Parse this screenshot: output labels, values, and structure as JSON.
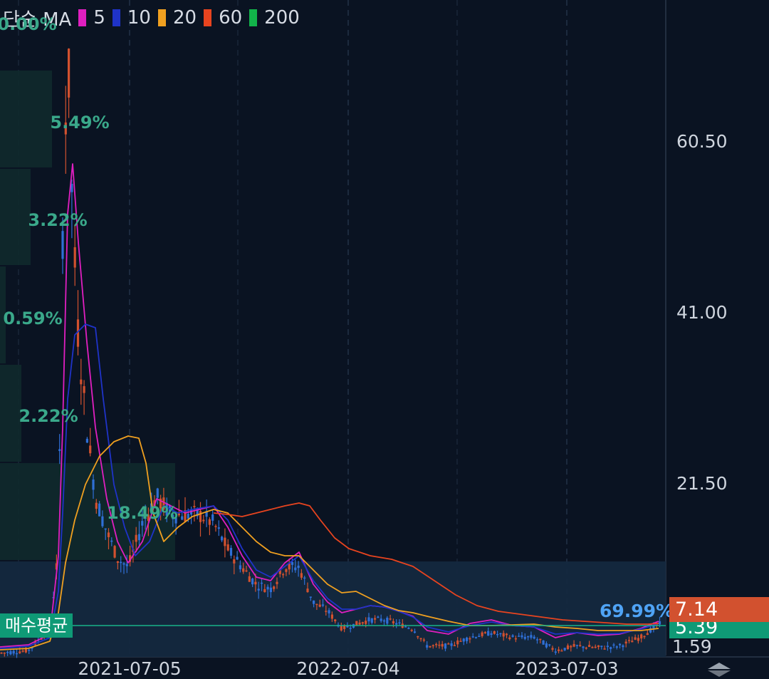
{
  "legend": {
    "prefix": "단순 MA",
    "items": [
      {
        "label": "5",
        "color": "#e01fc0"
      },
      {
        "label": "10",
        "color": "#1f33c8"
      },
      {
        "label": "20",
        "color": "#f0a020"
      },
      {
        "label": "60",
        "color": "#e8441f"
      },
      {
        "label": "200",
        "color": "#12b34a"
      }
    ]
  },
  "y_axis": {
    "ticks": [
      "60.50",
      "41.00",
      "21.50"
    ]
  },
  "x_axis": {
    "ticks": [
      "2021-07-05",
      "2022-07-04",
      "2023-07-03"
    ]
  },
  "volume_profile": {
    "labels": [
      "0.00%",
      "5.49%",
      "3.22%",
      "0.59%",
      "2.22%",
      "18.49%",
      "69.99%"
    ]
  },
  "price_tags": {
    "current": "7.14",
    "average": "5.39",
    "low": "1.59",
    "current_color": "#d2512f",
    "average_color": "#0f9a76"
  },
  "avg_label": "매수평균",
  "chart_data": {
    "type": "candlestick",
    "title": "",
    "xlabel": "",
    "ylabel": "",
    "x_ticks": [
      "2021-07-05",
      "2022-07-04",
      "2023-07-03"
    ],
    "y_ticks": [
      21.5,
      41.0,
      60.5
    ],
    "ylim": [
      1.0,
      75.0
    ],
    "average_price": 5.39,
    "last_price": 7.14,
    "min_price": 1.59,
    "volume_profile_percent": [
      0.0,
      5.49,
      3.22,
      0.59,
      2.22,
      18.49,
      69.99
    ],
    "series": [
      {
        "name": "5",
        "color": "#e01fc0",
        "x": [
          "2021-01",
          "2021-02",
          "2021-03",
          "2021-04",
          "2021-05",
          "2021-06",
          "2021-07",
          "2021-08",
          "2021-09",
          "2021-10",
          "2021-11",
          "2021-12",
          "2022-01",
          "2022-02",
          "2022-03",
          "2022-04",
          "2022-05",
          "2022-06",
          "2022-07",
          "2022-08",
          "2022-09",
          "2022-10",
          "2022-11",
          "2022-12",
          "2023-01",
          "2023-02",
          "2023-03",
          "2023-04",
          "2023-05",
          "2023-06",
          "2023-07",
          "2023-08",
          "2023-09"
        ],
        "values": [
          2,
          2.5,
          6,
          18,
          52,
          30,
          14,
          11,
          18,
          15,
          17,
          16,
          12,
          10,
          7,
          9,
          11,
          8,
          5,
          6,
          6,
          5,
          4,
          3,
          4,
          3,
          3.5,
          3,
          2.5,
          2.5,
          3,
          3.5,
          5
        ]
      },
      {
        "name": "10",
        "color": "#1f33c8",
        "x": [
          "2021-01",
          "2021-02",
          "2021-03",
          "2021-04",
          "2021-05",
          "2021-06",
          "2021-07",
          "2021-08",
          "2021-09",
          "2021-10",
          "2021-11",
          "2021-12",
          "2022-01",
          "2022-02",
          "2022-03",
          "2022-04",
          "2022-05",
          "2022-06",
          "2022-07",
          "2022-08",
          "2022-09",
          "2022-10",
          "2022-11",
          "2022-12",
          "2023-01",
          "2023-02",
          "2023-03",
          "2023-04",
          "2023-05",
          "2023-06",
          "2023-07",
          "2023-08",
          "2023-09"
        ],
        "values": [
          2,
          2.2,
          4,
          12,
          40,
          38,
          18,
          12,
          17,
          16,
          17,
          17,
          13,
          11,
          8,
          9,
          11,
          9,
          6,
          6,
          6,
          5,
          4,
          3.5,
          4,
          3.2,
          3.5,
          3,
          2.6,
          2.6,
          3,
          3.4,
          4.5
        ]
      },
      {
        "name": "20",
        "color": "#f0a020",
        "x": [
          "2021-01",
          "2021-02",
          "2021-03",
          "2021-04",
          "2021-05",
          "2021-06",
          "2021-07",
          "2021-08",
          "2021-09",
          "2021-10",
          "2021-11",
          "2021-12",
          "2022-01",
          "2022-02",
          "2022-03",
          "2022-04",
          "2022-05",
          "2022-06",
          "2022-07",
          "2022-08",
          "2022-09",
          "2022-10",
          "2022-11",
          "2022-12",
          "2023-01",
          "2023-02",
          "2023-03",
          "2023-04",
          "2023-05",
          "2023-06",
          "2023-07",
          "2023-08",
          "2023-09"
        ],
        "values": [
          2,
          2,
          3,
          8,
          20,
          26,
          25,
          17,
          15,
          16,
          17,
          17,
          15,
          13,
          10,
          9,
          10,
          10,
          7,
          7,
          6,
          5.5,
          4.5,
          4,
          4,
          3.5,
          3.5,
          3.3,
          3,
          2.8,
          3,
          3.3,
          4
        ]
      },
      {
        "name": "60",
        "color": "#e8441f",
        "x": [
          "2022-01",
          "2022-02",
          "2022-03",
          "2022-04",
          "2022-05",
          "2022-06",
          "2022-07",
          "2022-08",
          "2022-09",
          "2022-10",
          "2022-11",
          "2022-12",
          "2023-01",
          "2023-02",
          "2023-03",
          "2023-04",
          "2023-05",
          "2023-06",
          "2023-07",
          "2023-08",
          "2023-09"
        ],
        "values": [
          17,
          17.5,
          18,
          19,
          19,
          15,
          11,
          9,
          8.5,
          8,
          7,
          6,
          5,
          4.5,
          4.2,
          4,
          3.8,
          3.7,
          3.8,
          4,
          4.3
        ]
      }
    ]
  }
}
